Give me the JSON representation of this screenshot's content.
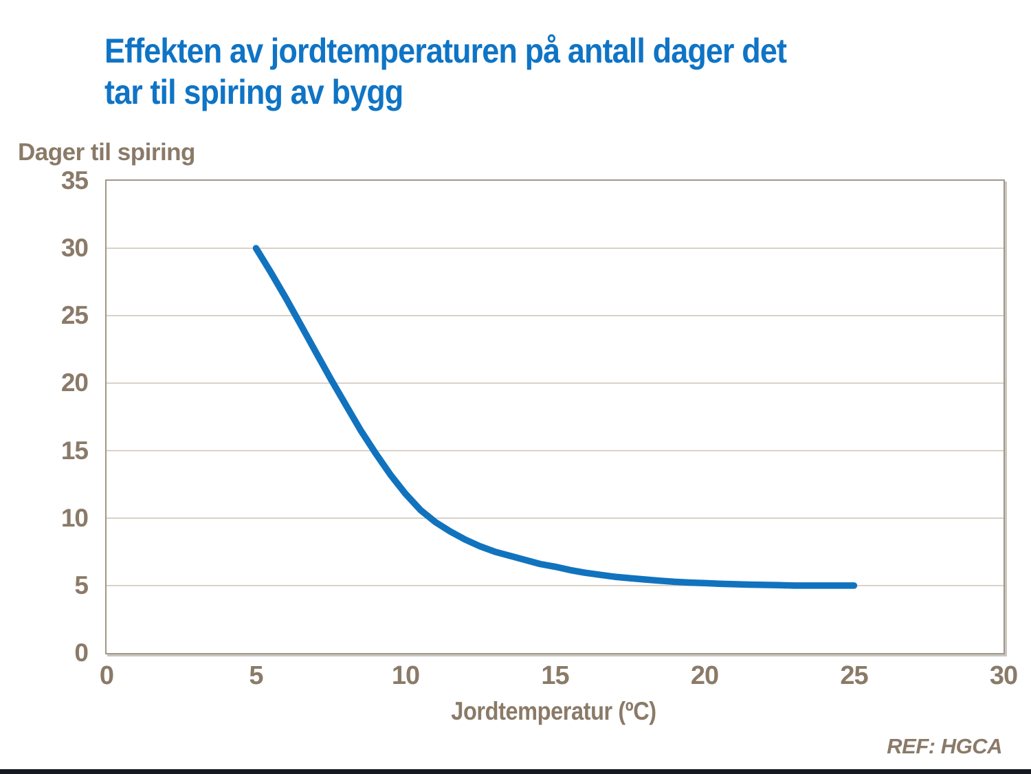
{
  "chart_data": {
    "type": "line",
    "title": "Effekten av jordtemperaturen på antall dager det tar til spiring av bygg",
    "title_lines": [
      "Effekten av jordtemperaturen på antall dager det",
      "tar til spiring av bygg"
    ],
    "ylabel": "Dager til spiring",
    "xlabel": "Jordtemperatur (ºC)",
    "source_note": "REF: HGCA",
    "xlim": [
      0,
      30
    ],
    "ylim": [
      0,
      35
    ],
    "xticks": [
      0,
      5,
      10,
      15,
      20,
      25,
      30
    ],
    "yticks": [
      0,
      5,
      10,
      15,
      20,
      25,
      30,
      35
    ],
    "grid": "horizontal gridlines every 5 units, plot framed with tan border",
    "legend_position": "none",
    "series": [
      {
        "name": "Dager til spiring av bygg",
        "points": [
          [
            5,
            30
          ],
          [
            5.5,
            28.2
          ],
          [
            6,
            26.3
          ],
          [
            6.5,
            24.3
          ],
          [
            7,
            22.3
          ],
          [
            7.5,
            20.3
          ],
          [
            8,
            18.4
          ],
          [
            8.5,
            16.5
          ],
          [
            9,
            14.8
          ],
          [
            9.5,
            13.2
          ],
          [
            10,
            11.8
          ],
          [
            10.5,
            10.6
          ],
          [
            11,
            9.7
          ],
          [
            11.5,
            9.0
          ],
          [
            12,
            8.4
          ],
          [
            12.5,
            7.9
          ],
          [
            13,
            7.5
          ],
          [
            13.5,
            7.2
          ],
          [
            14,
            6.9
          ],
          [
            14.5,
            6.6
          ],
          [
            15,
            6.4
          ],
          [
            15.5,
            6.15
          ],
          [
            16,
            5.95
          ],
          [
            16.5,
            5.8
          ],
          [
            17,
            5.65
          ],
          [
            17.5,
            5.55
          ],
          [
            18,
            5.45
          ],
          [
            18.5,
            5.36
          ],
          [
            19,
            5.28
          ],
          [
            19.5,
            5.22
          ],
          [
            20,
            5.18
          ],
          [
            20.5,
            5.13
          ],
          [
            21,
            5.1
          ],
          [
            21.5,
            5.07
          ],
          [
            22,
            5.05
          ],
          [
            22.5,
            5.03
          ],
          [
            23,
            5.0
          ],
          [
            23.5,
            5.0
          ],
          [
            24,
            5.0
          ],
          [
            24.5,
            5.0
          ],
          [
            25,
            5.0
          ]
        ]
      }
    ],
    "colors": {
      "title": "#0f74c5",
      "line": "#1173be",
      "axis_text": "#8a7a68",
      "gridline": "#cbc2b6",
      "frame": "#a29787",
      "bottom_bar": "#151a22"
    }
  }
}
